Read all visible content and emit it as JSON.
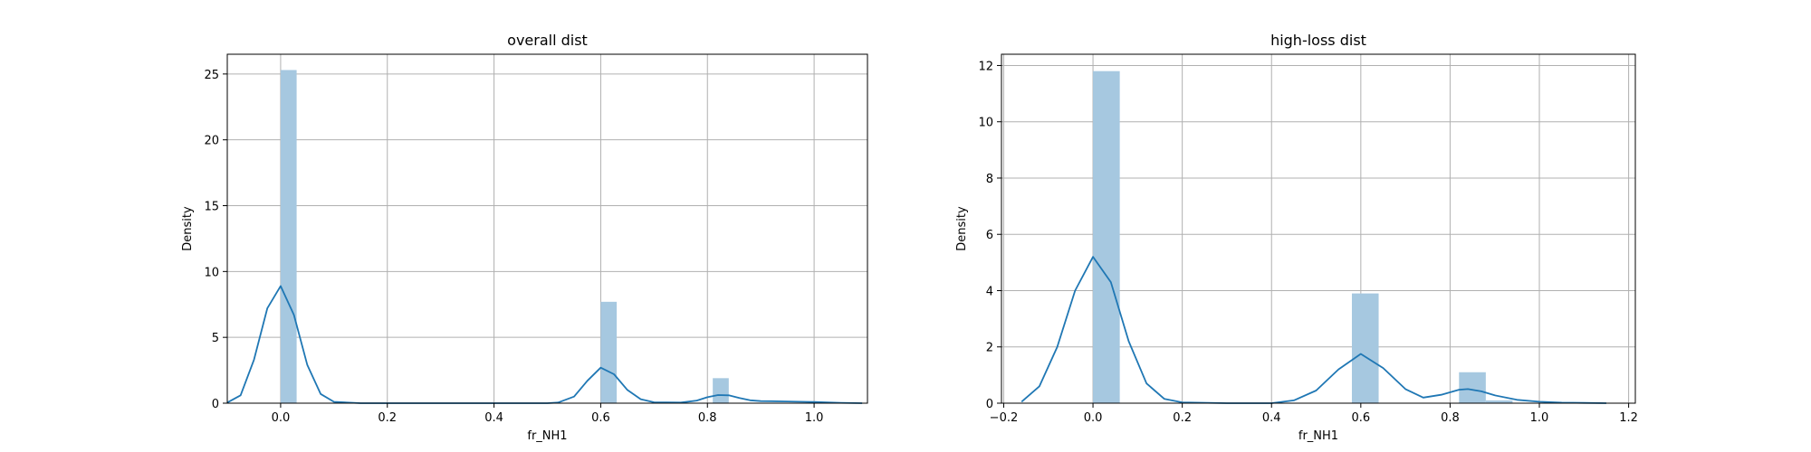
{
  "chart_data": [
    {
      "type": "histogram",
      "title": "overall dist",
      "xlabel": "fr_NH1",
      "ylabel": "Density",
      "xlim": [
        -0.1,
        1.1
      ],
      "ylim": [
        0,
        26.5
      ],
      "xticks": [
        0.0,
        0.2,
        0.4,
        0.6,
        0.8,
        1.0
      ],
      "xtick_labels": [
        "0.0",
        "0.2",
        "0.4",
        "0.6",
        "0.8",
        "1.0"
      ],
      "yticks": [
        0,
        5,
        10,
        15,
        20,
        25
      ],
      "ytick_labels": [
        "0",
        "5",
        "10",
        "15",
        "20",
        "25"
      ],
      "grid": true,
      "bar_color": "#a6c8e0",
      "line_color": "#1f77b4",
      "bars": [
        {
          "x0": 0.0,
          "x1": 0.03,
          "density": 25.3
        },
        {
          "x0": 0.6,
          "x1": 0.63,
          "density": 7.7
        },
        {
          "x0": 0.81,
          "x1": 0.84,
          "density": 1.9
        }
      ],
      "kde": {
        "x": [
          -0.1,
          -0.075,
          -0.05,
          -0.025,
          0.0,
          0.025,
          0.05,
          0.075,
          0.1,
          0.15,
          0.2,
          0.3,
          0.4,
          0.5,
          0.52,
          0.55,
          0.575,
          0.6,
          0.625,
          0.65,
          0.675,
          0.7,
          0.75,
          0.78,
          0.8,
          0.82,
          0.84,
          0.86,
          0.88,
          0.9,
          0.92,
          0.95,
          1.0,
          1.05,
          1.09
        ],
        "y": [
          0.05,
          0.6,
          3.3,
          7.2,
          8.9,
          6.7,
          2.9,
          0.7,
          0.1,
          0.0,
          0.0,
          0.0,
          0.0,
          0.0,
          0.05,
          0.5,
          1.7,
          2.7,
          2.2,
          1.0,
          0.3,
          0.07,
          0.05,
          0.2,
          0.45,
          0.62,
          0.6,
          0.4,
          0.22,
          0.16,
          0.15,
          0.13,
          0.09,
          0.03,
          0.0
        ]
      }
    },
    {
      "type": "histogram",
      "title": "high-loss dist",
      "xlabel": "fr_NH1",
      "ylabel": "Density",
      "xlim": [
        -0.205,
        1.215
      ],
      "ylim": [
        0,
        12.4
      ],
      "xticks": [
        -0.2,
        0.0,
        0.2,
        0.4,
        0.6,
        0.8,
        1.0,
        1.2
      ],
      "xtick_labels": [
        "−0.2",
        "0.0",
        "0.2",
        "0.4",
        "0.6",
        "0.8",
        "1.0",
        "1.2"
      ],
      "yticks": [
        0,
        2,
        4,
        6,
        8,
        10,
        12
      ],
      "ytick_labels": [
        "0",
        "2",
        "4",
        "6",
        "8",
        "10",
        "12"
      ],
      "grid": true,
      "bar_color": "#a6c8e0",
      "line_color": "#1f77b4",
      "bars": [
        {
          "x0": 0.0,
          "x1": 0.06,
          "density": 11.8
        },
        {
          "x0": 0.06,
          "x1": 0.12,
          "density": 0.0
        },
        {
          "x0": 0.58,
          "x1": 0.64,
          "density": 3.9
        },
        {
          "x0": 0.82,
          "x1": 0.88,
          "density": 1.1
        },
        {
          "x0": 0.88,
          "x1": 0.94,
          "density": 0.1
        }
      ],
      "kde": {
        "x": [
          -0.16,
          -0.12,
          -0.08,
          -0.04,
          0.0,
          0.04,
          0.08,
          0.12,
          0.16,
          0.2,
          0.3,
          0.4,
          0.45,
          0.5,
          0.55,
          0.6,
          0.65,
          0.7,
          0.74,
          0.78,
          0.82,
          0.84,
          0.87,
          0.9,
          0.95,
          1.0,
          1.05,
          1.1,
          1.15
        ],
        "y": [
          0.05,
          0.6,
          2.0,
          4.0,
          5.2,
          4.3,
          2.2,
          0.7,
          0.15,
          0.03,
          0.0,
          0.0,
          0.1,
          0.45,
          1.2,
          1.75,
          1.25,
          0.5,
          0.2,
          0.3,
          0.48,
          0.5,
          0.42,
          0.28,
          0.12,
          0.05,
          0.02,
          0.01,
          0.0
        ]
      }
    }
  ]
}
